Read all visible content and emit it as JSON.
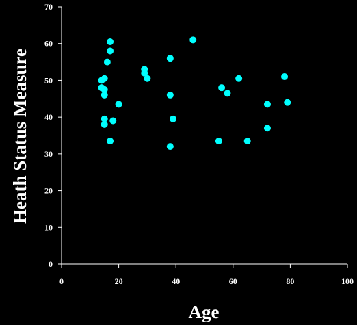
{
  "chart_data": {
    "type": "scatter",
    "title": "",
    "xlabel": "Age",
    "ylabel": "Heath Status Measure",
    "xlim": [
      0,
      100
    ],
    "ylim": [
      0,
      70
    ],
    "xticks": [
      "0",
      "20",
      "40",
      "60",
      "80",
      "100"
    ],
    "yticks": [
      "0",
      "10",
      "20",
      "30",
      "40",
      "50",
      "60",
      "70"
    ],
    "grid": false,
    "legend": "none",
    "colors": {
      "background": "#000000",
      "marker": "#00ffff",
      "axis": "#ffffff",
      "text": "#ffffff"
    },
    "series": [
      {
        "points": [
          {
            "x": 14,
            "y": 50
          },
          {
            "x": 14,
            "y": 48
          },
          {
            "x": 15,
            "y": 50.5
          },
          {
            "x": 15,
            "y": 47.5
          },
          {
            "x": 15,
            "y": 46
          },
          {
            "x": 15,
            "y": 39.5
          },
          {
            "x": 15,
            "y": 38
          },
          {
            "x": 16,
            "y": 55
          },
          {
            "x": 17,
            "y": 60.5
          },
          {
            "x": 17,
            "y": 58
          },
          {
            "x": 17,
            "y": 33.5
          },
          {
            "x": 18,
            "y": 39
          },
          {
            "x": 20,
            "y": 43.5
          },
          {
            "x": 29,
            "y": 53
          },
          {
            "x": 29,
            "y": 52
          },
          {
            "x": 30,
            "y": 50.5
          },
          {
            "x": 38,
            "y": 56
          },
          {
            "x": 38,
            "y": 46
          },
          {
            "x": 38,
            "y": 32
          },
          {
            "x": 39,
            "y": 39.5
          },
          {
            "x": 46,
            "y": 61
          },
          {
            "x": 55,
            "y": 33.5
          },
          {
            "x": 56,
            "y": 48
          },
          {
            "x": 58,
            "y": 46.5
          },
          {
            "x": 62,
            "y": 50.5
          },
          {
            "x": 65,
            "y": 33.5
          },
          {
            "x": 72,
            "y": 43.5
          },
          {
            "x": 72,
            "y": 37
          },
          {
            "x": 78,
            "y": 51
          },
          {
            "x": 79,
            "y": 44
          }
        ]
      }
    ]
  }
}
